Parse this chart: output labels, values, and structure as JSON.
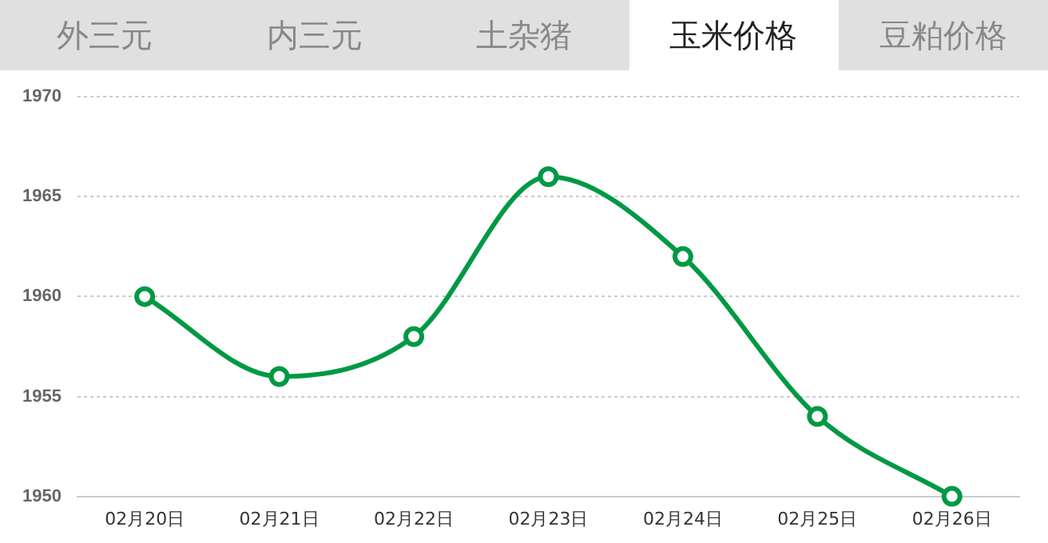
{
  "chart_data": {
    "type": "line",
    "title": "玉米价格",
    "annotations": [
      "外三元",
      "内三元",
      "土杂猪",
      "豆粕价格"
    ],
    "categories": [
      "02月20日",
      "02月21日",
      "02月22日",
      "02月23日",
      "02月24日",
      "02月25日",
      "02月26日"
    ],
    "series": [
      {
        "color": "#009944",
        "values": [
          1960,
          1956,
          1958,
          1966,
          1962,
          1954,
          1950
        ]
      }
    ],
    "ylim": [
      1950,
      1970
    ],
    "yticks": [
      1950,
      1955,
      1960,
      1965,
      1970
    ],
    "grid": "y",
    "legend": false,
    "marker": "circle",
    "line_style": "solid"
  }
}
